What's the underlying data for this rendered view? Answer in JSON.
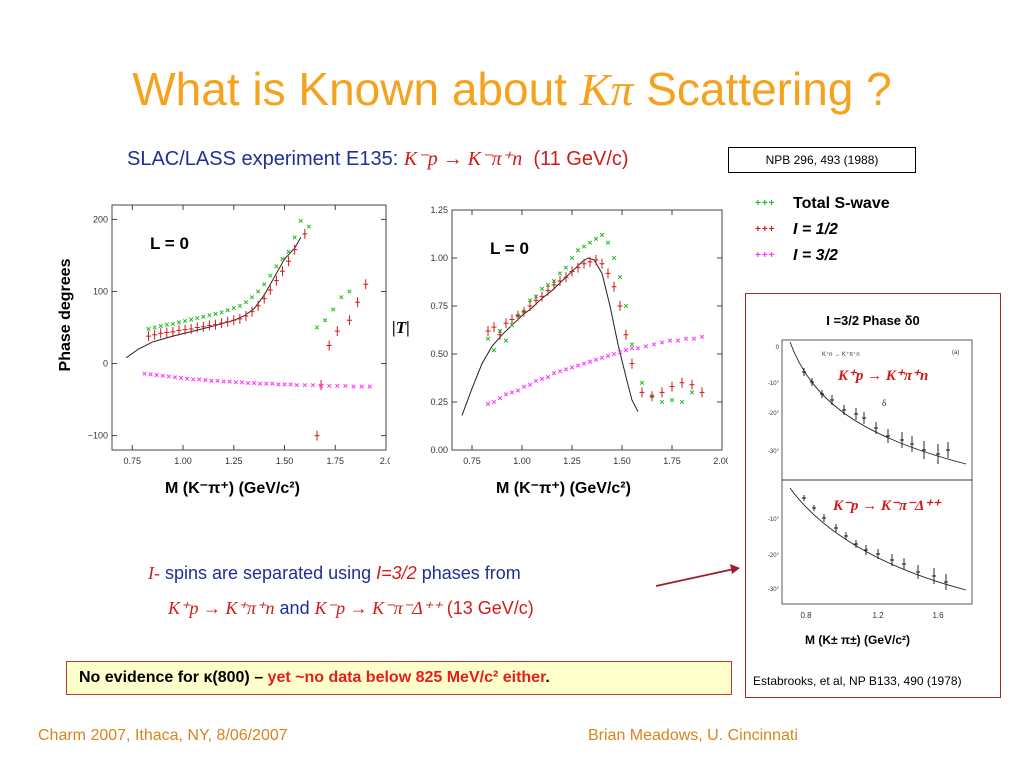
{
  "title": {
    "prefix": "What is Known about ",
    "symbol": "Kπ",
    "suffix": " Scattering ?"
  },
  "subtitle": {
    "lead": "SLAC/LASS experiment E135: ",
    "reaction": "K⁻p → K⁻π⁺n",
    "energy": "(11 GeV/c)"
  },
  "reference_box": "NPB 296, 493 (1988)",
  "legend": [
    {
      "marker": "+++",
      "color": "#22bb22",
      "label": "Total S-wave"
    },
    {
      "marker": "+++",
      "color": "#d21a1a",
      "label": "I = 1/2"
    },
    {
      "marker": "+++",
      "color": "#ff33ff",
      "label": "I = 3/2"
    }
  ],
  "left_ylabel": "Phase degrees",
  "right_ylabel": "|T|",
  "xlabel": "M (K⁻π⁺)  (GeV/c²)",
  "panel_label": "L = 0",
  "inset": {
    "title": "I =3/2 Phase δ0",
    "top_reaction": "K⁺p → K⁺π⁺n",
    "bottom_reaction": "K⁻p → K⁻π⁻Δ⁺⁺",
    "top_corner": "(a)",
    "top_process": "K⁺n → K⁺π⁺n",
    "delta_label": "δ",
    "xlabel": "M (K± π±)  (GeV/c²)",
    "citation": "Estabrooks, et al, NP B133, 490 (1978)"
  },
  "note": {
    "line1_a": "I-",
    "line1_b": " spins are separated using ",
    "line1_c": "I=3/2",
    "line1_d": "  phases from",
    "line2_a": "K⁺p → K⁺π⁺n",
    "line2_b": "  and  ",
    "line2_c": "K⁻p → K⁻π⁻Δ⁺⁺",
    "line2_d": " (13 GeV/c)"
  },
  "warning": {
    "black": "No evidence for κ(800) – ",
    "red": "yet ~no data below 825 MeV/c² either",
    "end": "."
  },
  "footer_left": "Charm 2007, Ithaca, NY, 8/06/2007",
  "footer_right": "Brian Meadows, U. Cincinnati",
  "chart_data": [
    {
      "type": "scatter",
      "panel": "phase",
      "ylabel": "Phase degrees",
      "xlabel": "M (K⁻π⁺)  (GeV/c²)",
      "xlim": [
        0.65,
        2.0
      ],
      "ylim": [
        -120,
        220
      ],
      "xticks": [
        "0.75",
        "1.00",
        "1.25",
        "1.50",
        "1.75",
        "2.0"
      ],
      "yticks": [
        "200",
        "100",
        "0",
        "−100"
      ],
      "xtick_values": [
        0.75,
        1.0,
        1.25,
        1.5,
        1.75,
        2.0
      ],
      "ytick_values": [
        200,
        100,
        0,
        -100
      ],
      "series": [
        {
          "color": "#22bb22",
          "marker": "x",
          "x": [
            0.83,
            0.86,
            0.89,
            0.92,
            0.95,
            0.98,
            1.01,
            1.04,
            1.07,
            1.1,
            1.13,
            1.16,
            1.19,
            1.22,
            1.25,
            1.28,
            1.31,
            1.34,
            1.37,
            1.4,
            1.43,
            1.46,
            1.49,
            1.52,
            1.55,
            1.58,
            1.62,
            1.66,
            1.7,
            1.74,
            1.78,
            1.82
          ],
          "y": [
            48,
            50,
            52,
            54,
            55,
            57,
            59,
            61,
            63,
            65,
            67,
            69,
            71,
            74,
            77,
            80,
            85,
            92,
            100,
            110,
            122,
            135,
            145,
            155,
            175,
            198,
            190,
            50,
            60,
            75,
            92,
            100
          ]
        },
        {
          "color": "#d21a1a",
          "marker": "+",
          "x": [
            0.83,
            0.86,
            0.89,
            0.92,
            0.95,
            0.98,
            1.01,
            1.04,
            1.07,
            1.1,
            1.13,
            1.16,
            1.19,
            1.22,
            1.25,
            1.28,
            1.31,
            1.34,
            1.37,
            1.4,
            1.43,
            1.46,
            1.49,
            1.52,
            1.55,
            1.6,
            1.66,
            1.68,
            1.72,
            1.76,
            1.82,
            1.86,
            1.9
          ],
          "y": [
            38,
            40,
            42,
            43,
            44,
            46,
            47,
            48,
            50,
            51,
            53,
            54,
            56,
            58,
            60,
            62,
            66,
            72,
            80,
            90,
            102,
            115,
            128,
            142,
            158,
            180,
            -100,
            -30,
            25,
            45,
            60,
            85,
            110
          ]
        },
        {
          "color": "#ff33ff",
          "marker": "x",
          "x": [
            0.81,
            0.84,
            0.87,
            0.9,
            0.93,
            0.96,
            0.99,
            1.02,
            1.05,
            1.08,
            1.11,
            1.14,
            1.17,
            1.2,
            1.23,
            1.26,
            1.29,
            1.32,
            1.35,
            1.38,
            1.41,
            1.44,
            1.47,
            1.5,
            1.53,
            1.56,
            1.6,
            1.64,
            1.68,
            1.72,
            1.76,
            1.8,
            1.84,
            1.88,
            1.92
          ],
          "y": [
            -14,
            -15,
            -16,
            -17,
            -18,
            -19,
            -20,
            -21,
            -22,
            -22,
            -23,
            -24,
            -24,
            -25,
            -25,
            -26,
            -26,
            -27,
            -27,
            -28,
            -28,
            -28,
            -29,
            -29,
            -29,
            -30,
            -30,
            -30,
            -31,
            -31,
            -31,
            -31,
            -32,
            -32,
            -32
          ]
        }
      ],
      "fit_curve": {
        "color": "#222222",
        "x": [
          0.72,
          0.78,
          0.85,
          0.95,
          1.05,
          1.15,
          1.25,
          1.3,
          1.35,
          1.4,
          1.45,
          1.5,
          1.55,
          1.58
        ],
        "y": [
          8,
          20,
          30,
          38,
          45,
          52,
          60,
          66,
          76,
          95,
          120,
          145,
          160,
          175
        ]
      }
    },
    {
      "type": "scatter",
      "panel": "amplitude",
      "ylabel": "|T|",
      "xlabel": "M (K⁻π⁺)  (GeV/c²)",
      "xlim": [
        0.65,
        2.0
      ],
      "ylim": [
        0,
        1.25
      ],
      "xticks": [
        "0.75",
        "1.00",
        "1.25",
        "1.50",
        "1.75",
        "2.00"
      ],
      "yticks": [
        "1.25",
        "1.00",
        "0.75",
        "0.50",
        "0.25",
        "0.00"
      ],
      "xtick_values": [
        0.75,
        1.0,
        1.25,
        1.5,
        1.75,
        2.0
      ],
      "ytick_values": [
        1.25,
        1.0,
        0.75,
        0.5,
        0.25,
        0.0
      ],
      "series": [
        {
          "color": "#22bb22",
          "marker": "x",
          "x": [
            0.83,
            0.86,
            0.89,
            0.92,
            0.95,
            0.98,
            1.01,
            1.04,
            1.07,
            1.1,
            1.13,
            1.16,
            1.19,
            1.22,
            1.25,
            1.28,
            1.31,
            1.34,
            1.37,
            1.4,
            1.43,
            1.46,
            1.49,
            1.52,
            1.55,
            1.6,
            1.65,
            1.7,
            1.75,
            1.8,
            1.85
          ],
          "y": [
            0.58,
            0.52,
            0.62,
            0.57,
            0.65,
            0.7,
            0.72,
            0.78,
            0.8,
            0.84,
            0.86,
            0.88,
            0.92,
            0.95,
            1.0,
            1.04,
            1.06,
            1.08,
            1.1,
            1.12,
            1.08,
            1.0,
            0.9,
            0.75,
            0.55,
            0.35,
            0.28,
            0.25,
            0.26,
            0.25,
            0.3
          ]
        },
        {
          "color": "#d21a1a",
          "marker": "+",
          "x": [
            0.83,
            0.86,
            0.89,
            0.92,
            0.95,
            0.98,
            1.01,
            1.04,
            1.07,
            1.1,
            1.13,
            1.16,
            1.19,
            1.22,
            1.25,
            1.28,
            1.31,
            1.34,
            1.37,
            1.4,
            1.43,
            1.46,
            1.49,
            1.52,
            1.55,
            1.6,
            1.65,
            1.7,
            1.75,
            1.8,
            1.85,
            1.9
          ],
          "y": [
            0.62,
            0.64,
            0.6,
            0.66,
            0.68,
            0.7,
            0.72,
            0.75,
            0.78,
            0.8,
            0.83,
            0.86,
            0.88,
            0.9,
            0.93,
            0.95,
            0.97,
            0.98,
            0.99,
            0.97,
            0.92,
            0.85,
            0.75,
            0.6,
            0.45,
            0.3,
            0.28,
            0.3,
            0.33,
            0.35,
            0.34,
            0.3
          ]
        },
        {
          "color": "#ff33ff",
          "marker": "x",
          "x": [
            0.83,
            0.86,
            0.89,
            0.92,
            0.95,
            0.98,
            1.01,
            1.04,
            1.07,
            1.1,
            1.13,
            1.16,
            1.19,
            1.22,
            1.25,
            1.28,
            1.31,
            1.34,
            1.37,
            1.4,
            1.43,
            1.46,
            1.49,
            1.52,
            1.55,
            1.58,
            1.62,
            1.66,
            1.7,
            1.74,
            1.78,
            1.82,
            1.86,
            1.9
          ],
          "y": [
            0.24,
            0.25,
            0.27,
            0.29,
            0.3,
            0.31,
            0.33,
            0.34,
            0.36,
            0.37,
            0.38,
            0.4,
            0.41,
            0.42,
            0.43,
            0.44,
            0.45,
            0.46,
            0.47,
            0.48,
            0.49,
            0.5,
            0.51,
            0.52,
            0.53,
            0.53,
            0.54,
            0.55,
            0.56,
            0.57,
            0.57,
            0.58,
            0.58,
            0.59
          ]
        }
      ],
      "fit_curve": {
        "color": "#222222",
        "x": [
          0.7,
          0.75,
          0.8,
          0.85,
          0.9,
          0.95,
          1.0,
          1.05,
          1.1,
          1.15,
          1.2,
          1.25,
          1.3,
          1.33,
          1.36,
          1.4,
          1.44,
          1.48,
          1.52,
          1.55,
          1.58
        ],
        "y": [
          0.18,
          0.32,
          0.45,
          0.54,
          0.6,
          0.65,
          0.7,
          0.74,
          0.79,
          0.83,
          0.88,
          0.93,
          0.98,
          1.0,
          0.99,
          0.92,
          0.75,
          0.55,
          0.38,
          0.26,
          0.2
        ]
      }
    }
  ]
}
